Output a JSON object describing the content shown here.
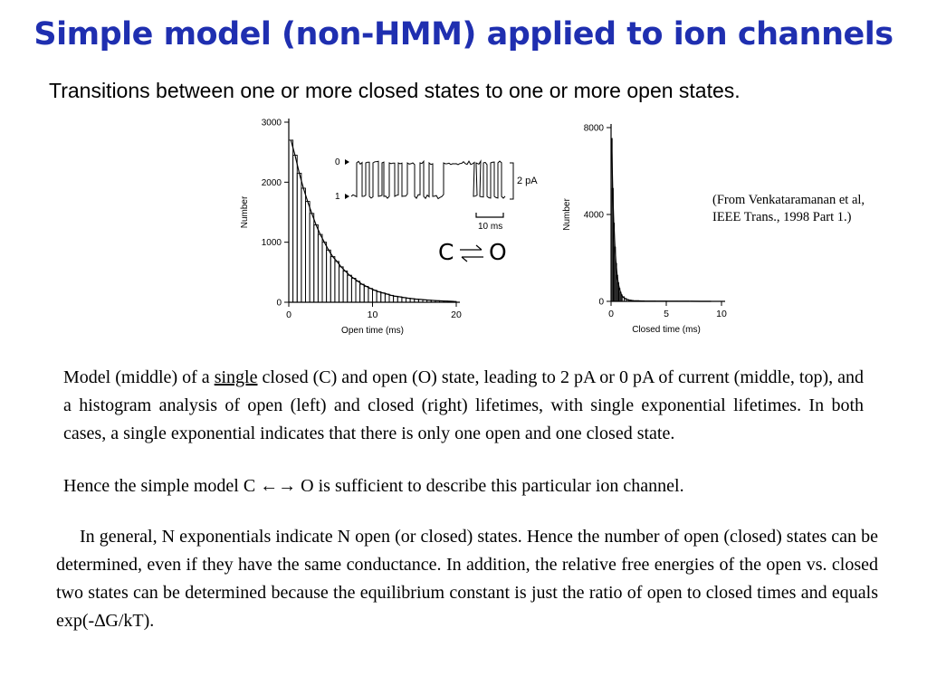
{
  "slide": {
    "title": "Simple model (non-HMM) applied to ion channels",
    "subtitle": "Transitions between one or more closed states to one or more open states.",
    "title_color": "#1f2fb0"
  },
  "citation": {
    "line1": "(From Venkataramanan et al,",
    "line2": "IEEE Trans., 1998 Part 1.)"
  },
  "model_diagram": {
    "left_state": "C",
    "right_state": "O"
  },
  "trace": {
    "level_open_label": "0",
    "level_closed_label": "1",
    "amplitude_label": "2 pA",
    "time_scale_label": "10 ms"
  },
  "text": {
    "desc_before": "Model (middle) of a ",
    "desc_underlined": "single",
    "desc_after": " closed (C) and open (O) state, leading to 2 pA or 0 pA of current (middle, top), and a histogram analysis of open (left) and closed (right) lifetimes, with single exponential lifetimes. In both cases, a single exponential indicates that there is only one open and one closed state.",
    "conclusion_before": "Hence the simple model C ",
    "conclusion_arrow": "←→",
    "conclusion_after": " O is sufficient to describe this particular ion channel.",
    "general": "In general, N exponentials indicate N open (or closed) states. Hence the number of open (closed) states can be determined, even if they have the same conductance. In addition, the relative free energies of the open vs. closed two states can be determined because the equilibrium constant is just the ratio of open to closed times and equals exp(-∆G/kT)."
  },
  "chart_data": [
    {
      "type": "bar",
      "xlabel": "Open time (ms)",
      "ylabel": "Number",
      "xlim": [
        0,
        20
      ],
      "ylim": [
        0,
        3000
      ],
      "xticks": [
        "0",
        "10",
        "20"
      ],
      "yticks": [
        "0",
        "1000",
        "2000",
        "3000"
      ],
      "bin_width": 0.5,
      "x": [
        0,
        0.5,
        1,
        1.5,
        2,
        2.5,
        3,
        3.5,
        4,
        4.5,
        5,
        5.5,
        6,
        6.5,
        7,
        7.5,
        8,
        8.5,
        9,
        9.5,
        10,
        10.5,
        11,
        11.5,
        12,
        12.5,
        13,
        13.5,
        14,
        14.5,
        15,
        15.5,
        16,
        16.5,
        17,
        17.5,
        18,
        18.5,
        19,
        19.5
      ],
      "values": [
        2700,
        2450,
        2150,
        1900,
        1680,
        1480,
        1290,
        1130,
        1000,
        870,
        760,
        680,
        590,
        520,
        450,
        400,
        350,
        300,
        265,
        230,
        200,
        175,
        155,
        135,
        115,
        100,
        90,
        78,
        68,
        60,
        52,
        46,
        40,
        35,
        30,
        26,
        22,
        19,
        16,
        14
      ],
      "series": [
        {
          "name": "",
          "kind": "histogram"
        },
        {
          "name": "",
          "kind": "exponential fit"
        }
      ]
    },
    {
      "type": "bar",
      "xlabel": "Closed time (ms)",
      "ylabel": "Number",
      "xlim": [
        0,
        10
      ],
      "ylim": [
        0,
        8000
      ],
      "xticks": [
        "0",
        "5",
        "10"
      ],
      "yticks": [
        "0",
        "4000",
        "8000"
      ],
      "bin_width": 0.1,
      "x": [
        0,
        0.1,
        0.2,
        0.3,
        0.4,
        0.5,
        0.6,
        0.7,
        0.8,
        0.9,
        1.0,
        1.2,
        1.4,
        1.6,
        1.8,
        2.0,
        2.5,
        3.0,
        4.0,
        5.0,
        6.0,
        7.0,
        8.0,
        9.0
      ],
      "values": [
        7500,
        5200,
        3600,
        2500,
        1750,
        1200,
        850,
        600,
        420,
        300,
        210,
        130,
        80,
        55,
        40,
        30,
        20,
        12,
        8,
        5,
        4,
        3,
        2,
        1
      ],
      "series": [
        {
          "name": "",
          "kind": "histogram"
        },
        {
          "name": "",
          "kind": "exponential fit"
        }
      ]
    }
  ]
}
